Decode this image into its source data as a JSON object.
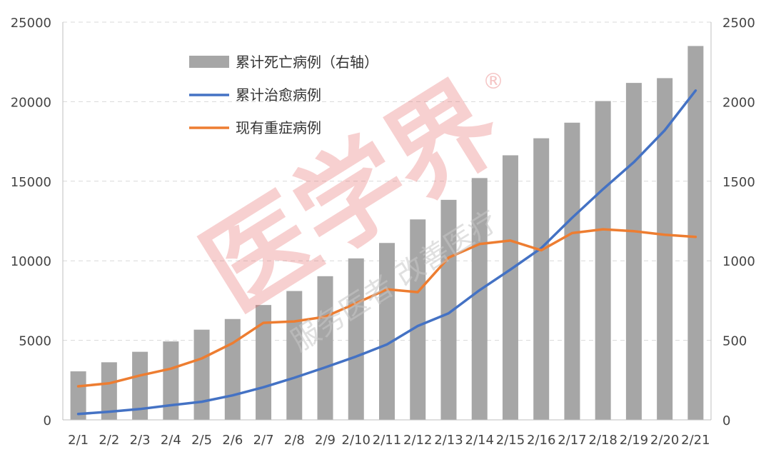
{
  "chart_data": {
    "type": "bar",
    "categories": [
      "2/1",
      "2/2",
      "2/3",
      "2/4",
      "2/5",
      "2/6",
      "2/7",
      "2/8",
      "2/9",
      "2/10",
      "2/11",
      "2/12",
      "2/13",
      "2/14",
      "2/15",
      "2/16",
      "2/17",
      "2/18",
      "2/19",
      "2/20",
      "2/21"
    ],
    "series": [
      {
        "name": "累计死亡病例（右轴）",
        "type": "bar",
        "axis": "right",
        "color": "#a6a6a6",
        "values": [
          305,
          362,
          428,
          493,
          567,
          634,
          722,
          810,
          903,
          1015,
          1112,
          1260,
          1383,
          1520,
          1663,
          1770,
          1868,
          2004,
          2118,
          2148,
          2350
        ]
      },
      {
        "name": "累计治愈病例",
        "type": "line",
        "axis": "left",
        "color": "#4472c4",
        "values": [
          370,
          510,
          680,
          920,
          1140,
          1540,
          2050,
          2650,
          3300,
          3980,
          4740,
          5900,
          6700,
          8150,
          9450,
          10800,
          12700,
          14500,
          16200,
          18200,
          20700
        ]
      },
      {
        "name": "现有重症病例",
        "type": "line",
        "axis": "left",
        "color": "#ed7d31",
        "values": [
          2110,
          2300,
          2790,
          3220,
          3860,
          4820,
          6100,
          6190,
          6480,
          7330,
          8210,
          8030,
          10200,
          11050,
          11270,
          10660,
          11740,
          11980,
          11860,
          11640,
          11500
        ]
      }
    ],
    "ylim_left": [
      0,
      25000
    ],
    "ylim_right": [
      0,
      2500
    ],
    "left_ticks": [
      "0",
      "5000",
      "10000",
      "15000",
      "20000",
      "25000"
    ],
    "right_ticks": [
      "0",
      "500",
      "1000",
      "1500",
      "2000",
      "2500"
    ],
    "grid": "horizontal-dashed",
    "legend_position": "top-left"
  },
  "watermark": {
    "main": "医学界",
    "sub": "服务医者 改善医疗",
    "reg": "®"
  }
}
